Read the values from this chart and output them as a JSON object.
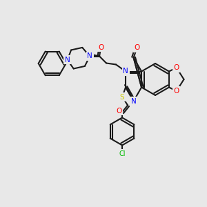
{
  "bg_color": "#e8e8e8",
  "bond_color": "#1a1a1a",
  "bond_width": 1.5,
  "atom_colors": {
    "N": "#0000ff",
    "O": "#ff0000",
    "S": "#cccc00",
    "Cl": "#00cc00",
    "C": "#1a1a1a"
  },
  "font_size": 7.5
}
